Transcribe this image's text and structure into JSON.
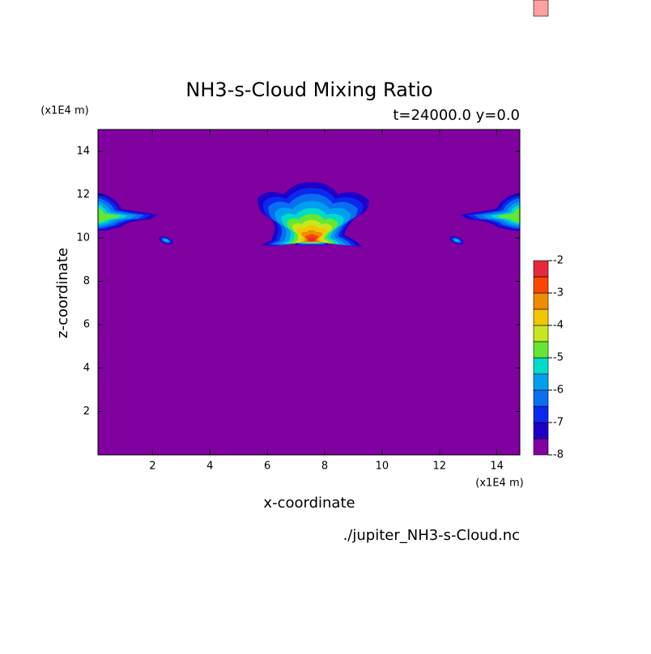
{
  "chart_data": {
    "type": "contour",
    "title": "NH3-s-Cloud Mixing Ratio",
    "subtitle": "t=24000.0 y=0.0",
    "x_label": "x-coordinate",
    "y_label": "z-coordinate",
    "x_unit": "(x1E4 m)",
    "y_unit": "(x1E4 m)",
    "source": "./jupiter_NH3-s-Cloud.nc",
    "xlim": [
      0.1,
      14.8
    ],
    "xticks": [
      2,
      4,
      6,
      8,
      10,
      12,
      14
    ],
    "ylim": [
      0,
      15
    ],
    "yticks": [
      2,
      4,
      6,
      8,
      10,
      12,
      14
    ],
    "levels": [
      -8,
      -7.5,
      -7,
      -6.5,
      -6,
      -5.5,
      -5,
      -4.5,
      -4,
      -3.5,
      -3,
      -2.5,
      -2
    ],
    "colorbar_ticks": [
      -8,
      -7,
      -6,
      -5,
      -4,
      -3,
      -2
    ],
    "colors": [
      "#8000a0",
      "#1e00c8",
      "#0a28f0",
      "#0a6ef0",
      "#00a0f0",
      "#00dcc8",
      "#64e632",
      "#c8e61e",
      "#f0c800",
      "#f08c00",
      "#fa4600",
      "#e6283c",
      "#ffa0a0"
    ]
  }
}
